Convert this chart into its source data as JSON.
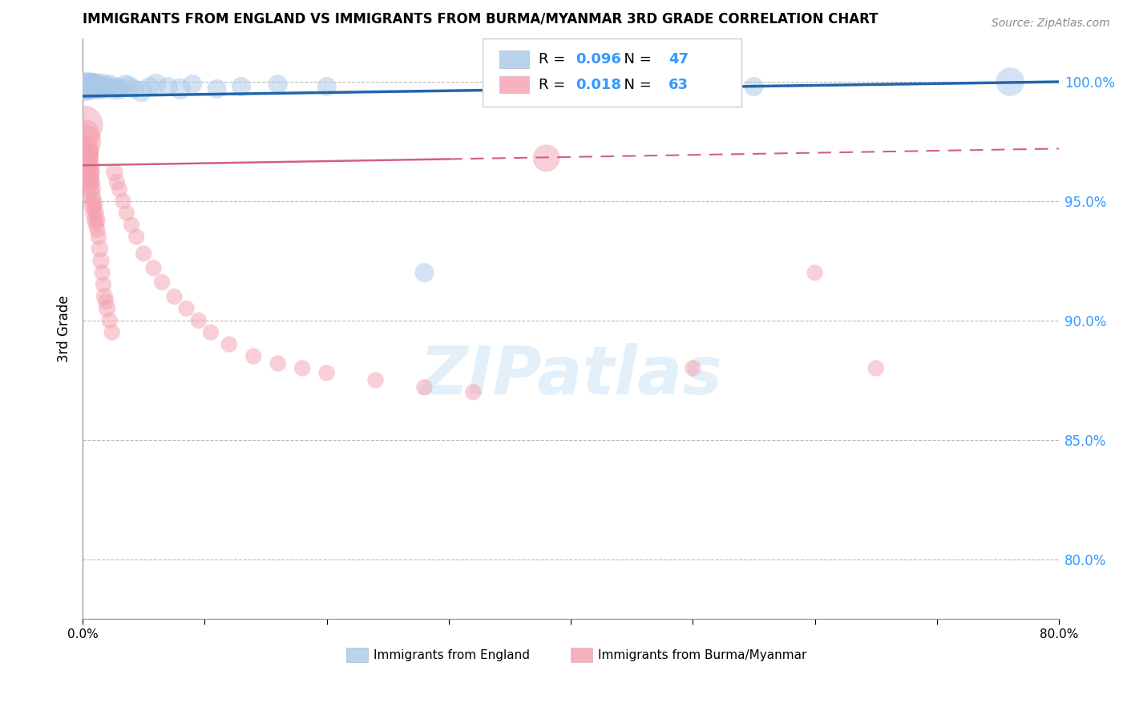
{
  "title": "IMMIGRANTS FROM ENGLAND VS IMMIGRANTS FROM BURMA/MYANMAR 3RD GRADE CORRELATION CHART",
  "source": "Source: ZipAtlas.com",
  "ylabel": "3rd Grade",
  "watermark": "ZIPatlas",
  "england_R": 0.096,
  "england_N": 47,
  "burma_R": 0.018,
  "burma_N": 63,
  "england_color": "#a8c8e8",
  "burma_color": "#f4a0b0",
  "england_line_color": "#2166ac",
  "burma_line_color": "#d4607a",
  "legend_color": "#3399ff",
  "ytick_labels": [
    "80.0%",
    "85.0%",
    "90.0%",
    "95.0%",
    "100.0%"
  ],
  "ytick_values": [
    0.8,
    0.85,
    0.9,
    0.95,
    1.0
  ],
  "xlim": [
    0.0,
    0.8
  ],
  "ylim": [
    0.775,
    1.018
  ],
  "england_x": [
    0.001,
    0.002,
    0.002,
    0.003,
    0.003,
    0.004,
    0.004,
    0.005,
    0.005,
    0.006,
    0.006,
    0.007,
    0.007,
    0.008,
    0.008,
    0.009,
    0.009,
    0.01,
    0.011,
    0.012,
    0.013,
    0.014,
    0.015,
    0.016,
    0.018,
    0.02,
    0.022,
    0.025,
    0.028,
    0.03,
    0.035,
    0.038,
    0.042,
    0.048,
    0.055,
    0.06,
    0.07,
    0.08,
    0.09,
    0.11,
    0.13,
    0.16,
    0.2,
    0.28,
    0.38,
    0.55,
    0.76
  ],
  "england_y": [
    0.999,
    0.998,
    0.997,
    0.999,
    0.998,
    0.997,
    0.999,
    0.998,
    0.997,
    0.998,
    0.999,
    0.997,
    0.998,
    0.999,
    0.997,
    0.998,
    0.999,
    0.998,
    0.997,
    0.999,
    0.998,
    0.997,
    0.998,
    0.999,
    0.997,
    0.998,
    0.999,
    0.997,
    0.998,
    0.997,
    0.999,
    0.998,
    0.997,
    0.996,
    0.998,
    0.999,
    0.998,
    0.997,
    0.999,
    0.997,
    0.998,
    0.999,
    0.998,
    0.92,
    0.997,
    0.998,
    1.0
  ],
  "england_sizes": [
    30,
    25,
    40,
    35,
    45,
    30,
    40,
    35,
    30,
    40,
    35,
    30,
    25,
    35,
    30,
    25,
    35,
    30,
    25,
    30,
    25,
    30,
    25,
    30,
    25,
    30,
    25,
    30,
    25,
    30,
    25,
    30,
    25,
    30,
    25,
    30,
    25,
    30,
    25,
    25,
    25,
    25,
    25,
    25,
    25,
    25,
    55
  ],
  "burma_x": [
    0.001,
    0.001,
    0.002,
    0.002,
    0.003,
    0.003,
    0.003,
    0.004,
    0.004,
    0.005,
    0.005,
    0.005,
    0.006,
    0.006,
    0.007,
    0.007,
    0.007,
    0.008,
    0.008,
    0.009,
    0.009,
    0.01,
    0.01,
    0.011,
    0.011,
    0.012,
    0.012,
    0.013,
    0.014,
    0.015,
    0.016,
    0.017,
    0.018,
    0.019,
    0.02,
    0.022,
    0.024,
    0.026,
    0.028,
    0.03,
    0.033,
    0.036,
    0.04,
    0.044,
    0.05,
    0.058,
    0.065,
    0.075,
    0.085,
    0.095,
    0.105,
    0.12,
    0.14,
    0.16,
    0.18,
    0.2,
    0.24,
    0.28,
    0.32,
    0.38,
    0.5,
    0.6,
    0.65
  ],
  "burma_y": [
    0.982,
    0.975,
    0.978,
    0.97,
    0.972,
    0.968,
    0.965,
    0.962,
    0.968,
    0.96,
    0.955,
    0.97,
    0.958,
    0.965,
    0.952,
    0.962,
    0.958,
    0.948,
    0.955,
    0.945,
    0.95,
    0.942,
    0.948,
    0.94,
    0.945,
    0.938,
    0.942,
    0.935,
    0.93,
    0.925,
    0.92,
    0.915,
    0.91,
    0.908,
    0.905,
    0.9,
    0.895,
    0.962,
    0.958,
    0.955,
    0.95,
    0.945,
    0.94,
    0.935,
    0.928,
    0.922,
    0.916,
    0.91,
    0.905,
    0.9,
    0.895,
    0.89,
    0.885,
    0.882,
    0.88,
    0.878,
    0.875,
    0.872,
    0.87,
    0.968,
    0.88,
    0.92,
    0.88
  ],
  "burma_sizes": [
    100,
    80,
    60,
    50,
    45,
    40,
    35,
    35,
    30,
    30,
    28,
    25,
    25,
    25,
    25,
    22,
    22,
    22,
    20,
    20,
    20,
    20,
    18,
    18,
    18,
    18,
    18,
    18,
    20,
    20,
    18,
    18,
    20,
    18,
    20,
    18,
    18,
    20,
    18,
    18,
    18,
    18,
    18,
    18,
    18,
    18,
    18,
    18,
    18,
    18,
    18,
    18,
    18,
    18,
    18,
    18,
    18,
    18,
    18,
    50,
    18,
    18,
    18
  ]
}
